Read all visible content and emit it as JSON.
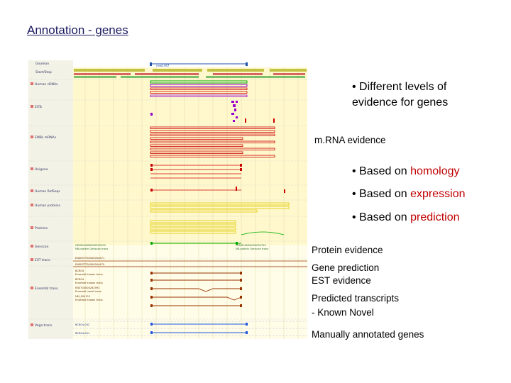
{
  "slide": {
    "title": "Annotation - genes"
  },
  "bullets": {
    "b1_line1": "• Different levels of",
    "b1_line2": "evidence for genes",
    "b2_prefix": "• Based on ",
    "b2_word": "homology",
    "b3_prefix": "• Based on ",
    "b3_word": "expression",
    "b4_prefix": "• Based on ",
    "b4_word": "prediction"
  },
  "labels": {
    "mrna": "m.RNA evidence",
    "protein": "Protein evidence",
    "gene_pred": "Gene prediction",
    "est": "EST evidence",
    "pred_transcripts": "Predicted transcripts",
    "known_novel": "- Known Novel",
    "manual": "Manually annotated genes"
  },
  "browser": {
    "tracks": [
      "Gnomon",
      "Start/Stop",
      "Human cDNAs",
      "ESTs",
      "EMBL mRNAs",
      "Unigene",
      "Human RefSeqs",
      "Human proteins",
      "Proteins",
      "Genscan",
      "EST trans.",
      "Ensembl trans.",
      "Vega trans."
    ],
    "gene_label": "ENSG0000000000",
    "ens_labels": [
      "ENSESTT00000004471",
      "ENSESTT00000004479",
      "BCR04",
      "Ensembl known trans",
      "BCR04",
      "Ensembl known trans",
      "ENST00000262591",
      "Ensembl novel trans",
      "NM_004112",
      "Ensembl known trans"
    ],
    "vega_labels": [
      "BCR04-002",
      "BCR04-001"
    ],
    "genscan_labels": [
      "GENSCAN00000029299",
      "NR-protein Genscan trans",
      "GENSCAN00000034759",
      "NR-protein Genscan trans"
    ],
    "accent_colors": {
      "red": "#cc0000",
      "green": "#00aa00",
      "purple": "#9900cc",
      "blue": "#2255dd",
      "yellow": "#e8d800",
      "brown": "#993300"
    }
  }
}
